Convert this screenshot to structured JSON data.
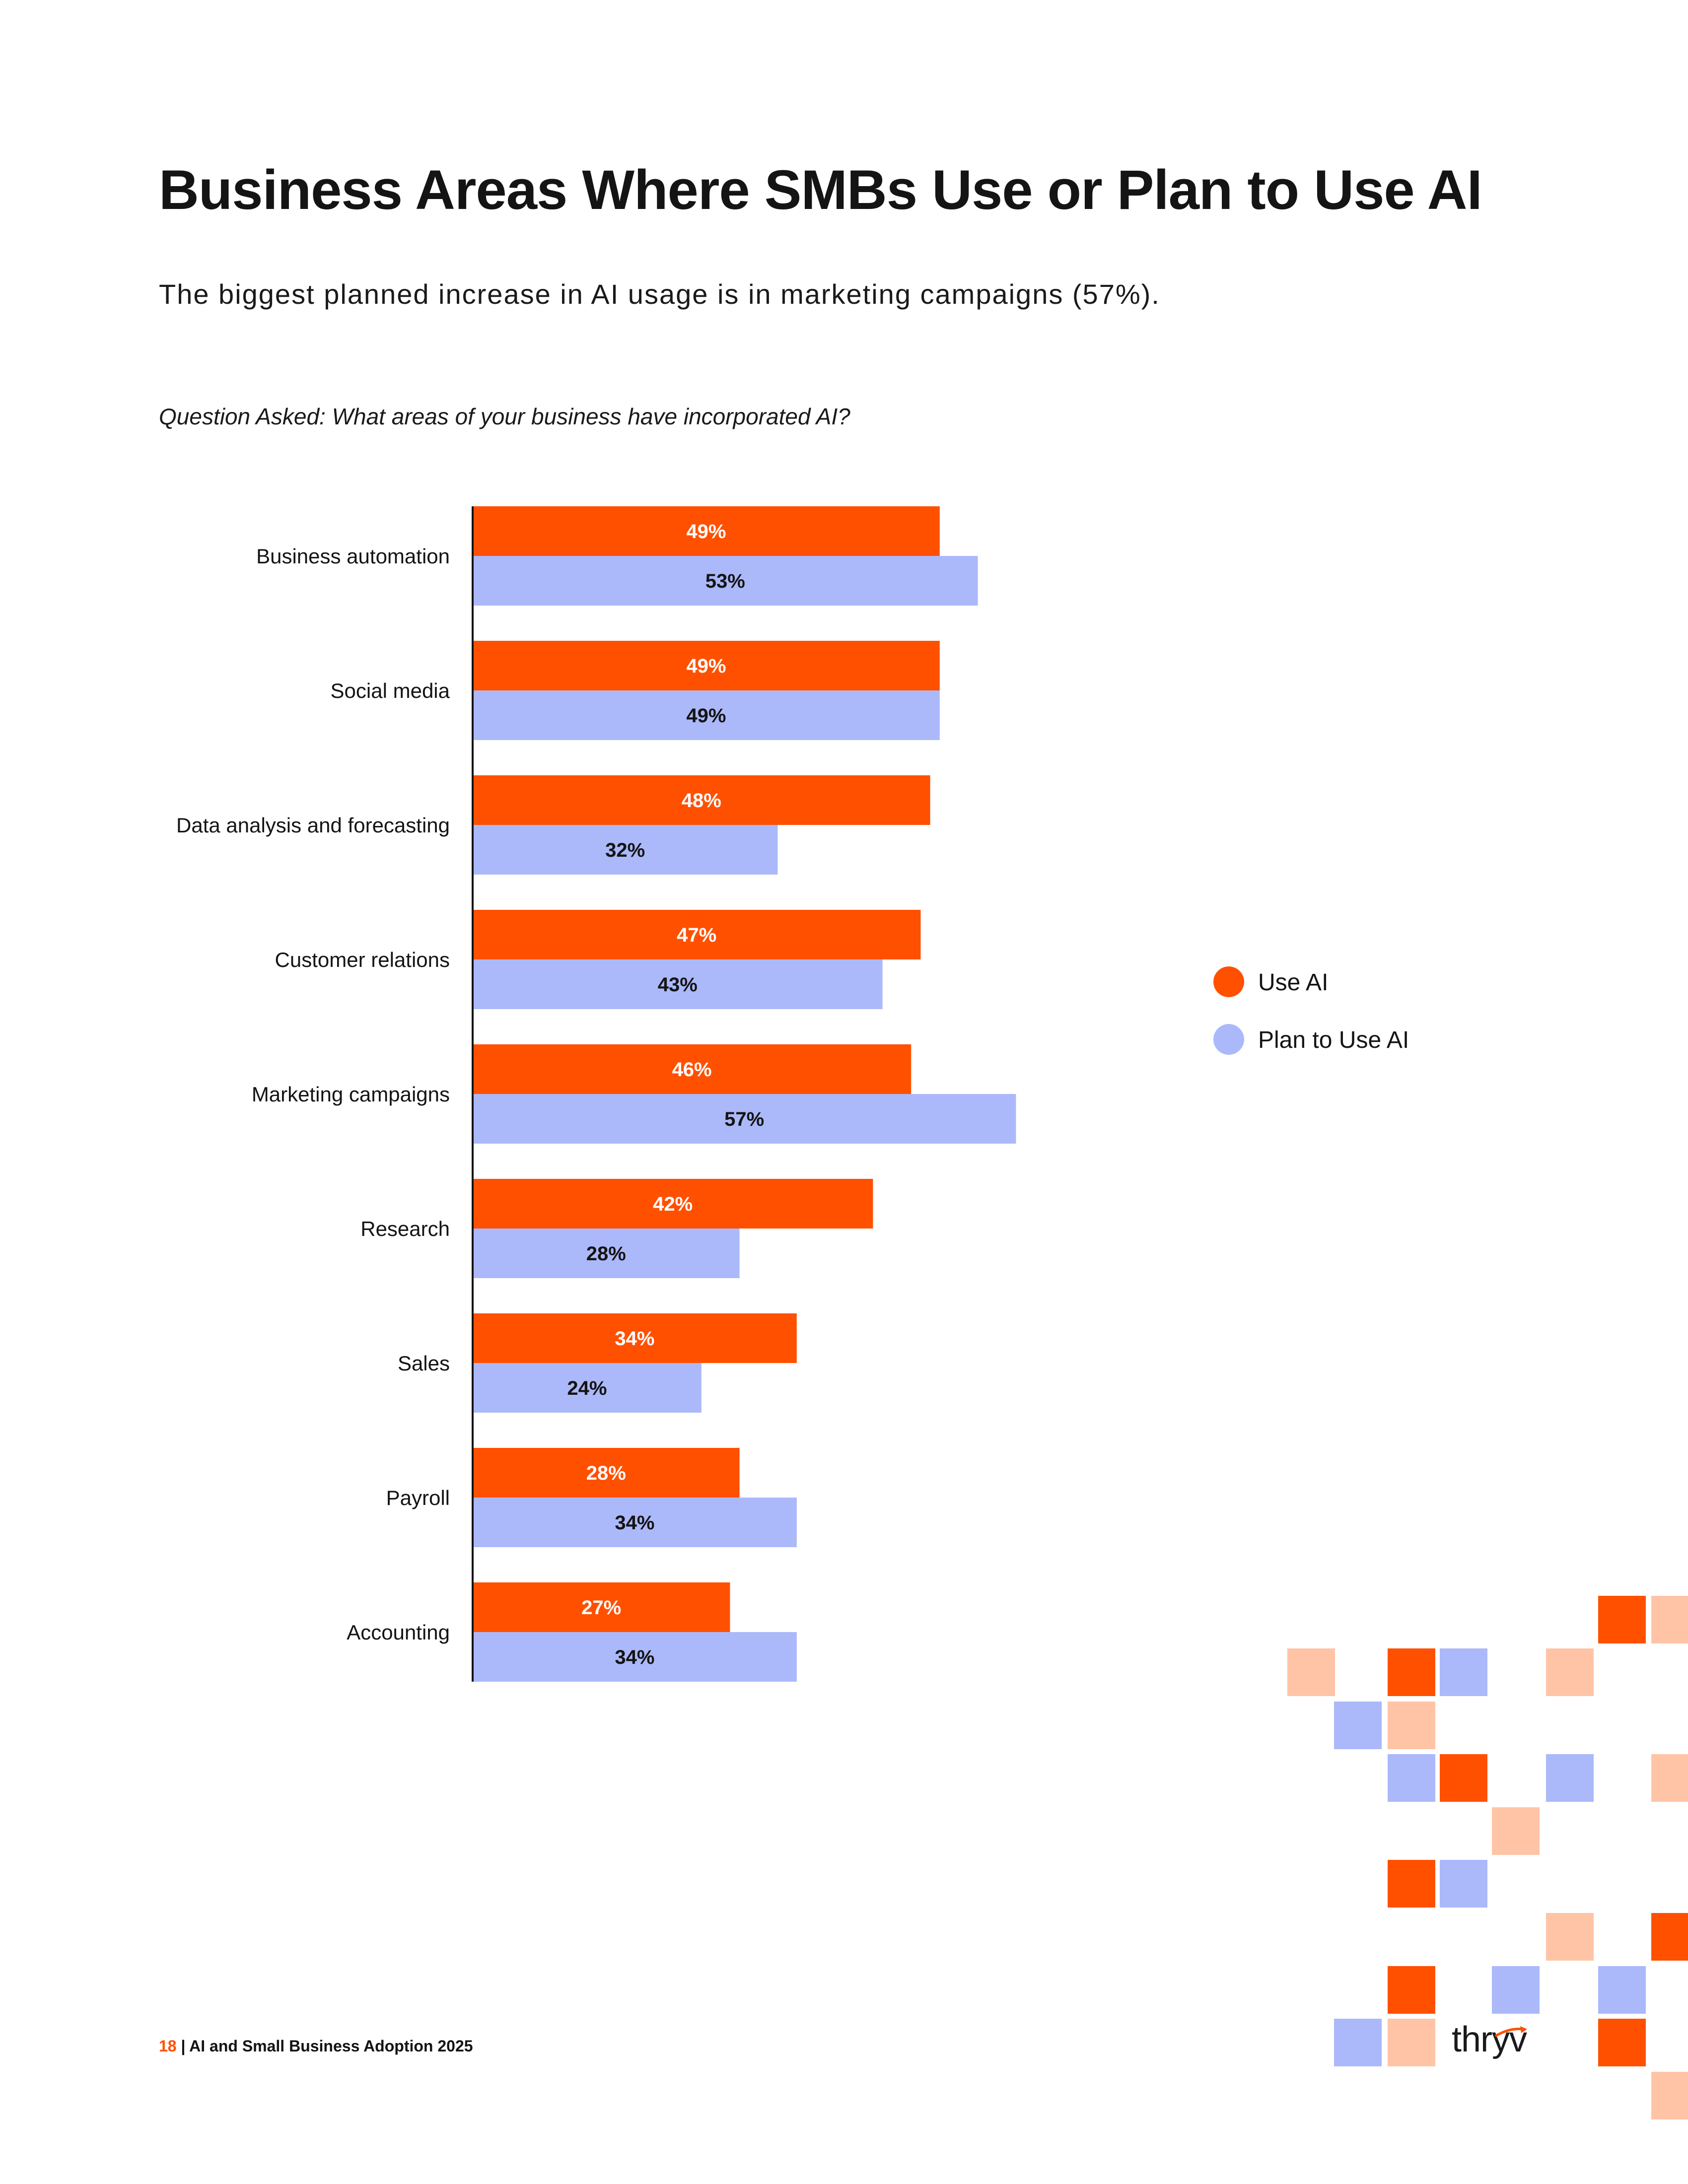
{
  "page": {
    "title": "Business Areas Where SMBs Use or Plan to Use AI",
    "subtitle": "The biggest planned increase in AI usage is in marketing campaigns (57%).",
    "question": "Question Asked: What areas of your business have incorporated AI?"
  },
  "chart_data": {
    "type": "bar",
    "orientation": "horizontal",
    "title": "Business Areas Where SMBs Use or Plan to Use AI",
    "categories": [
      "Business automation",
      "Social media",
      "Data analysis and forecasting",
      "Customer relations",
      "Marketing campaigns",
      "Research",
      "Sales",
      "Payroll",
      "Accounting"
    ],
    "series": [
      {
        "name": "Use AI",
        "color": "#ff5000",
        "values": [
          49,
          49,
          48,
          47,
          46,
          42,
          34,
          28,
          27
        ],
        "labels": [
          "49%",
          "49%",
          "48%",
          "47%",
          "46%",
          "42%",
          "34%",
          "28%",
          "27%"
        ]
      },
      {
        "name": "Plan to Use AI",
        "color": "#abb9fa",
        "values": [
          53,
          49,
          32,
          43,
          57,
          28,
          24,
          34,
          34
        ],
        "labels": [
          "53%",
          "49%",
          "32%",
          "43%",
          "57%",
          "28%",
          "24%",
          "34%",
          "34%"
        ]
      }
    ],
    "unit": "%",
    "xlim": [
      0,
      100
    ],
    "legend_position": "right",
    "grid": false
  },
  "footer": {
    "page_number": "18",
    "separator": " | ",
    "text": "AI and Small Business Adoption 2025"
  },
  "brand": {
    "logo_text": "thryv",
    "accent_color": "#ff5000",
    "secondary_color": "#abb9fa",
    "light_accent_color": "#ffc4a6"
  }
}
